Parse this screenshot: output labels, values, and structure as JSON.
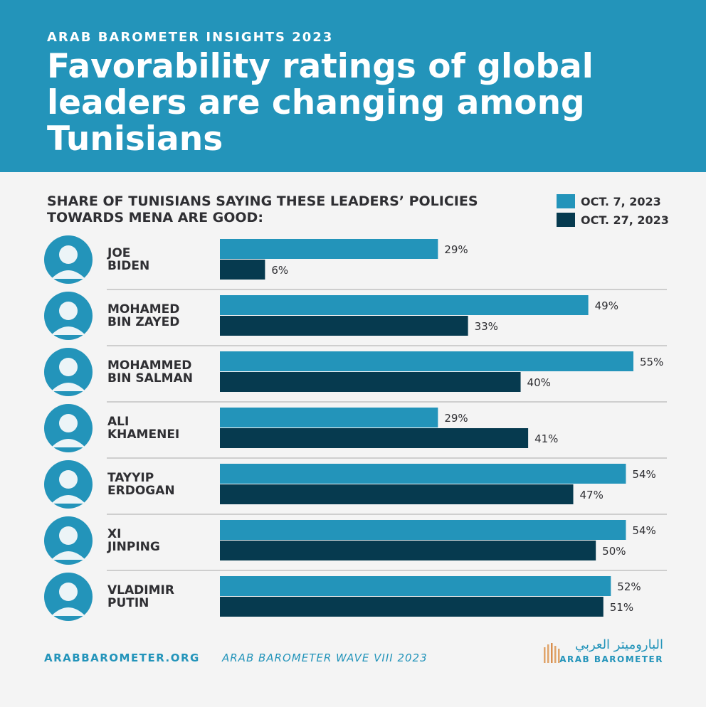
{
  "header": {
    "eyebrow": "ARAB BAROMETER INSIGHTS 2023",
    "title": "Favorability ratings of global leaders are changing among Tunisians"
  },
  "subtitle": "SHARE OF TUNISIANS SAYING THESE LEADERS’ POLICIES TOWARDS MENA ARE GOOD:",
  "legend": [
    {
      "label": "OCT. 7, 2023",
      "color": "#2394ba"
    },
    {
      "label": "OCT. 27, 2023",
      "color": "#063a4f"
    }
  ],
  "chart_data": {
    "type": "bar",
    "orientation": "horizontal",
    "categories": [
      {
        "line1": "JOE",
        "line2": "BIDEN"
      },
      {
        "line1": "MOHAMED",
        "line2": "BIN ZAYED"
      },
      {
        "line1": "MOHAMMED",
        "line2": "BIN SALMAN"
      },
      {
        "line1": "ALI",
        "line2": "KHAMENEI"
      },
      {
        "line1": "TAYYIP",
        "line2": "ERDOGAN"
      },
      {
        "line1": "XI",
        "line2": "JINPING"
      },
      {
        "line1": "VLADIMIR",
        "line2": "PUTIN"
      }
    ],
    "series": [
      {
        "name": "OCT. 7, 2023",
        "color": "#2394ba",
        "values": [
          29,
          49,
          55,
          29,
          54,
          54,
          52
        ],
        "labels": [
          "29%",
          "49%",
          "55%",
          "29%",
          "54%",
          "54%",
          "52%"
        ]
      },
      {
        "name": "OCT. 27, 2023",
        "color": "#063a4f",
        "values": [
          6,
          33,
          40,
          41,
          47,
          50,
          51
        ],
        "labels": [
          "6%",
          "33%",
          "40%",
          "41%",
          "47%",
          "50%",
          "51%"
        ]
      }
    ],
    "xlim": [
      0,
      55
    ],
    "grid": false,
    "legend_position": "top-right"
  },
  "footer": {
    "url": "ARABBAROMETER.ORG",
    "source": "ARAB BAROMETER WAVE VIII 2023"
  },
  "logo": {
    "arabic": "الباروميتر العربي",
    "english": "ARAB BAROMETER",
    "bar_color": "#e0a46a"
  }
}
